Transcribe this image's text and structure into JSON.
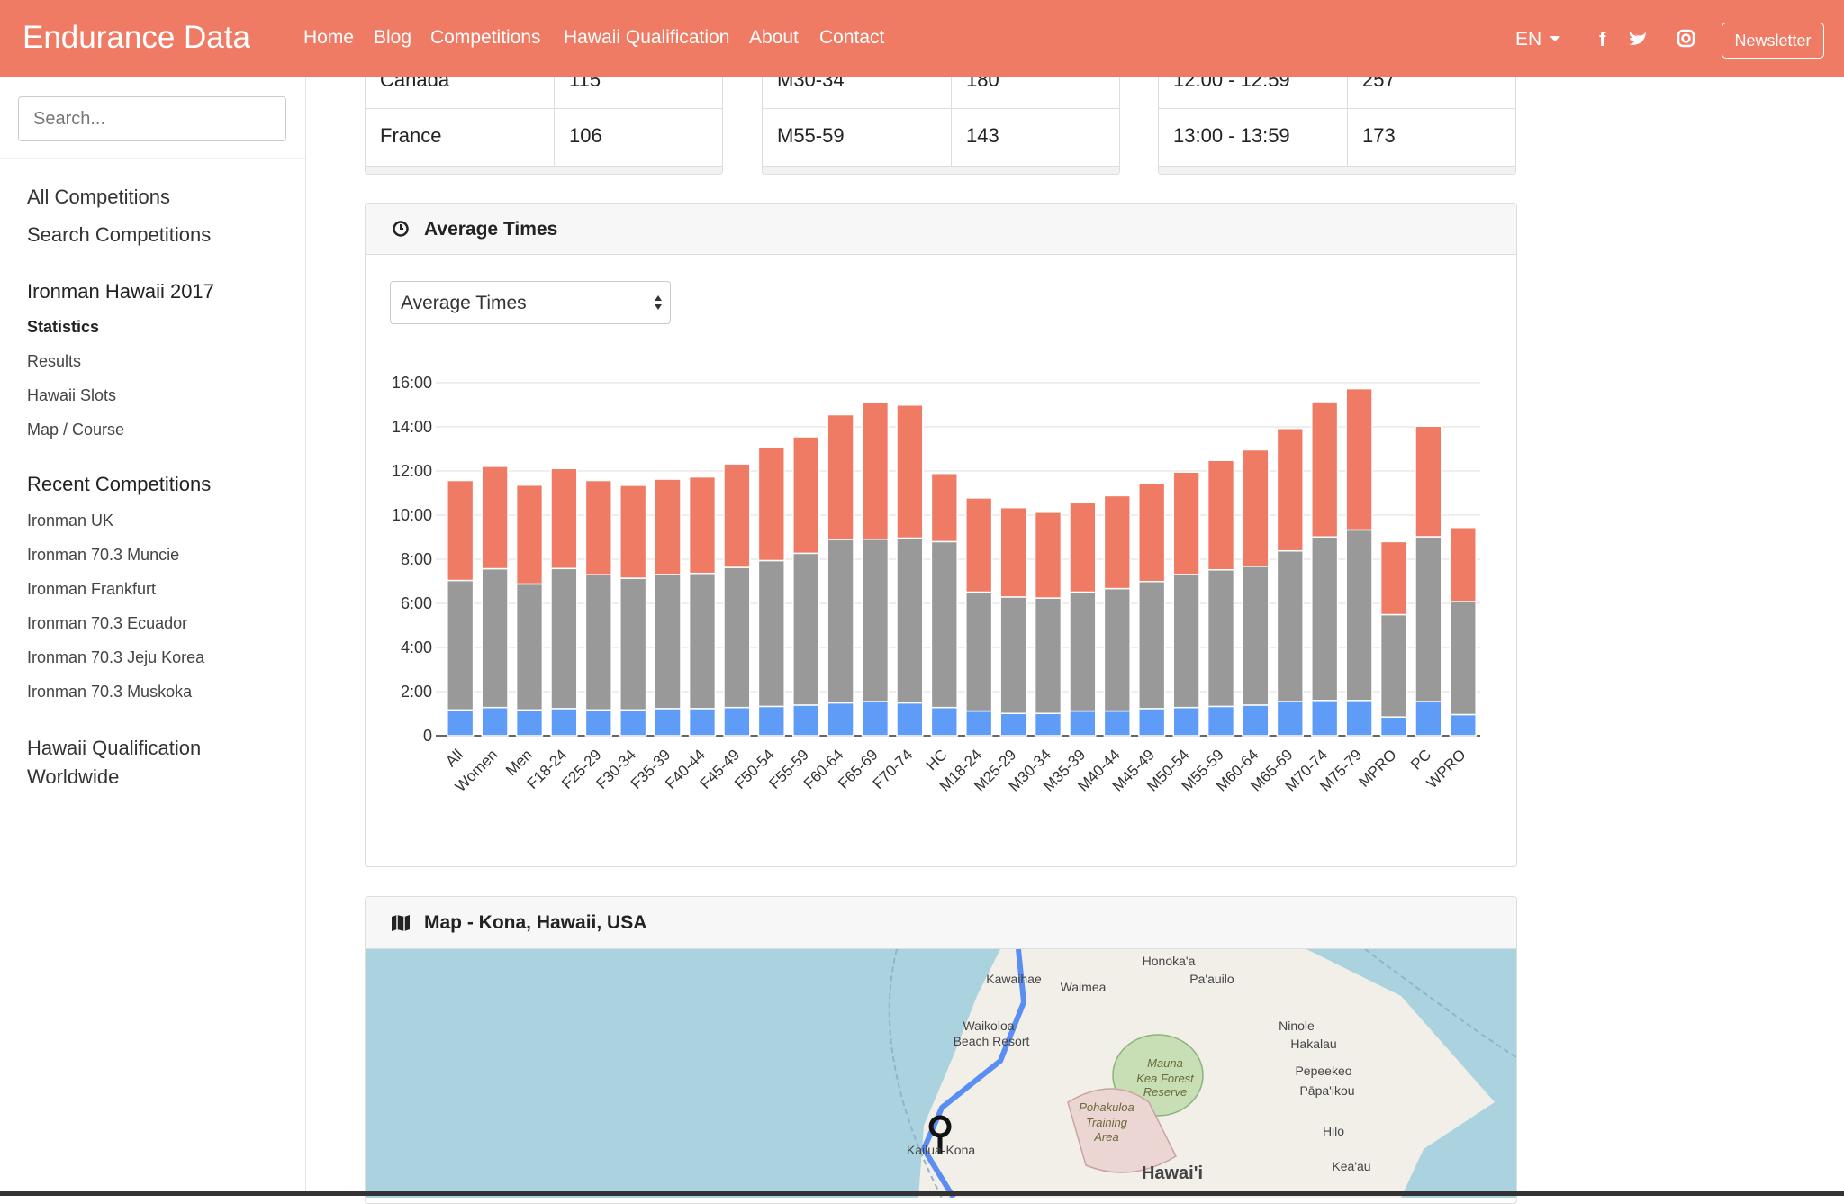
{
  "nav": {
    "brand": "Endurance Data",
    "links": [
      "Home",
      "Blog",
      "Competitions",
      "Hawaii Qualification",
      "About",
      "Contact"
    ],
    "language": "EN",
    "button": "Newsletter"
  },
  "sidebar": {
    "search_placeholder": "Search...",
    "links": [
      "All Competitions",
      "Search Competitions"
    ],
    "event_title": "Ironman Hawaii 2017",
    "event_items": [
      "Statistics",
      "Results",
      "Hawaii Slots",
      "Map / Course"
    ],
    "recent_title": "Recent Competitions",
    "recent_items": [
      "Ironman UK",
      "Ironman 70.3 Muncie",
      "Ironman Frankfurt",
      "Ironman 70.3 Ecuador",
      "Ironman 70.3 Jeju Korea",
      "Ironman 70.3 Muskoka"
    ],
    "footer_link": "Hawaii Qualification Worldwide"
  },
  "tables": [
    {
      "rows": [
        [
          "Canada",
          "115"
        ],
        [
          "France",
          "106"
        ]
      ]
    },
    {
      "rows": [
        [
          "M30-34",
          "180"
        ],
        [
          "M55-59",
          "143"
        ]
      ]
    },
    {
      "rows": [
        [
          "12:00 - 12:59",
          "257"
        ],
        [
          "13:00 - 13:59",
          "173"
        ]
      ]
    }
  ],
  "chart_panel": {
    "title": "Average Times",
    "select": "Average Times"
  },
  "chart_data": {
    "type": "stacked_bar",
    "categories": [
      "All",
      "Women",
      "Men",
      "F18-24",
      "F25-29",
      "F30-34",
      "F35-39",
      "F40-44",
      "F45-49",
      "F50-54",
      "F55-59",
      "F60-64",
      "F65-69",
      "F70-74",
      "HC",
      "M18-24",
      "M25-29",
      "M30-34",
      "M35-39",
      "M40-44",
      "M45-49",
      "M50-54",
      "M55-59",
      "M60-64",
      "M65-69",
      "M70-74",
      "M75-79",
      "MPRO",
      "PC",
      "WPRO"
    ],
    "series": [
      {
        "color": "#5e9cf7",
        "values": [
          1.17,
          1.28,
          1.17,
          1.23,
          1.17,
          1.17,
          1.23,
          1.23,
          1.28,
          1.33,
          1.39,
          1.49,
          1.55,
          1.49,
          1.28,
          1.12,
          1.01,
          1.01,
          1.12,
          1.12,
          1.23,
          1.28,
          1.33,
          1.39,
          1.55,
          1.6,
          1.6,
          0.85,
          1.55,
          0.96
        ]
      },
      {
        "color": "#999999",
        "values": [
          5.87,
          6.29,
          5.71,
          6.35,
          6.13,
          5.97,
          6.08,
          6.13,
          6.35,
          6.61,
          6.88,
          7.41,
          7.36,
          7.47,
          7.52,
          5.39,
          5.28,
          5.23,
          5.39,
          5.55,
          5.76,
          6.03,
          6.19,
          6.29,
          6.83,
          7.41,
          7.73,
          4.64,
          7.47,
          5.12
        ]
      },
      {
        "color": "#f07b65",
        "values": [
          4.53,
          4.64,
          4.48,
          4.53,
          4.27,
          4.21,
          4.32,
          4.37,
          4.69,
          5.12,
          5.28,
          5.65,
          6.19,
          6.03,
          3.09,
          4.27,
          4.05,
          3.89,
          4.05,
          4.21,
          4.43,
          4.64,
          4.96,
          5.28,
          5.55,
          6.13,
          6.4,
          3.31,
          5.01,
          3.36
        ]
      }
    ],
    "ylim": [
      0,
      16
    ],
    "yticks": [
      0,
      {
        "value": 2,
        "label": "2:00"
      },
      {
        "value": 4,
        "label": "4:00"
      },
      {
        "value": 6,
        "label": "6:00"
      },
      {
        "value": 8,
        "label": "8:00"
      },
      {
        "value": 10,
        "label": "10:00"
      },
      {
        "value": 12,
        "label": "12:00"
      },
      {
        "value": 14,
        "label": "14:00"
      },
      {
        "value": 16,
        "label": "16:00"
      }
    ],
    "grid": true
  },
  "map_panel": {
    "title": "Map - Kona, Hawaii, USA",
    "labels": [
      "Honoka'a",
      "Pa'auilo",
      "Kawaihae",
      "Waimea",
      "Waikoloa",
      "Beach Resort",
      "Ninole",
      "Hakalau",
      "Mauna",
      "Kea Forest",
      "Reserve",
      "Pepeekeo",
      "Pāpa'ikou",
      "Pohakuloa",
      "Training",
      "Area",
      "Hilo",
      "Kailua-Kona",
      "Hawai'i",
      "Kea'au"
    ]
  }
}
